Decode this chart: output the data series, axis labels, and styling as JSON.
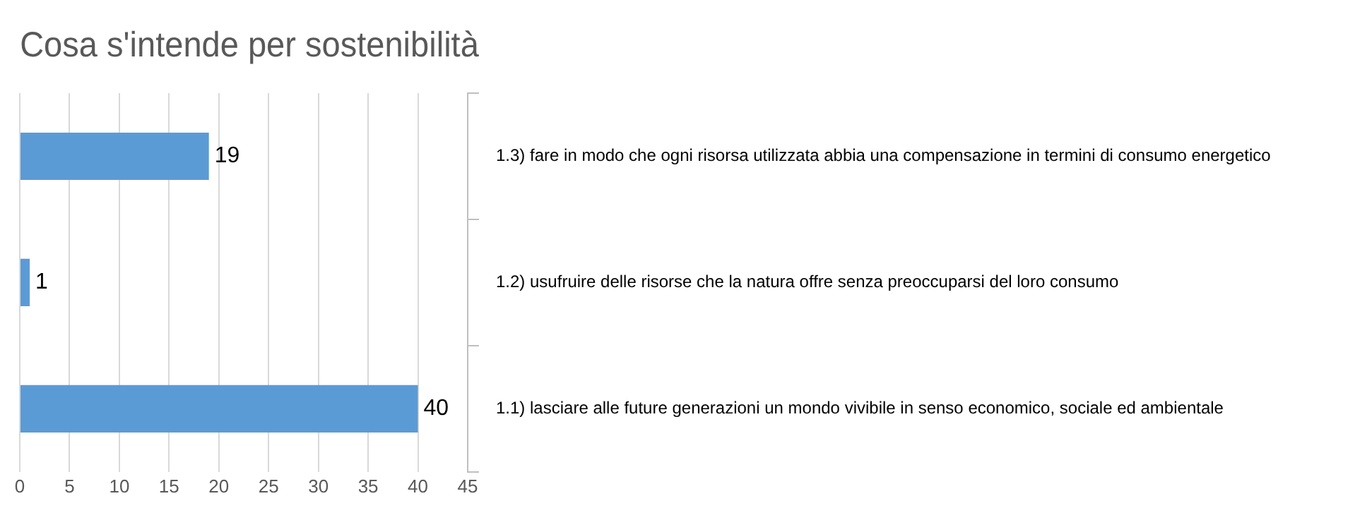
{
  "chart_data": {
    "type": "bar",
    "orientation": "horizontal",
    "title": "Cosa s'intende per sostenibilità",
    "categories": [
      "1.3) fare in modo che ogni risorsa utilizzata abbia una compensazione in termini di consumo energetico",
      "1.2) usufruire delle risorse che la natura offre senza preoccuparsi del loro consumo",
      "1.1) lasciare alle future generazioni un mondo vivibile in senso economico, sociale ed ambientale"
    ],
    "values": [
      19,
      1,
      40
    ],
    "color": "#5b9bd5",
    "xlim": [
      0,
      45
    ],
    "xticks": [
      0,
      5,
      10,
      15,
      20,
      25,
      30,
      35,
      40,
      45
    ],
    "grid": "x",
    "data_labels": true
  }
}
